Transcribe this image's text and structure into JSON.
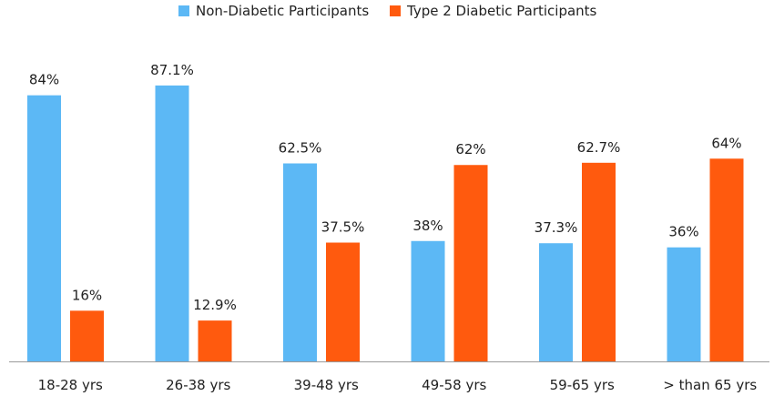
{
  "chart_data": {
    "type": "bar",
    "title": "",
    "xlabel": "",
    "ylabel": "",
    "ylim": [
      0,
      100
    ],
    "grid": false,
    "legend_position": "top",
    "categories": [
      "18-28 yrs",
      "26-38 yrs",
      "39-48 yrs",
      "49-58 yrs",
      "59-65 yrs",
      "> than 65 yrs"
    ],
    "series": [
      {
        "name": "Non-Diabetic Participants",
        "color": "#5cb8f5",
        "values": [
          84,
          87.1,
          62.5,
          38,
          37.3,
          36
        ],
        "labels": [
          "84%",
          "87.1%",
          "62.5%",
          "38%",
          "37.3%",
          "36%"
        ]
      },
      {
        "name": "Type 2 Diabetic Participants",
        "color": "#ff5a0e",
        "values": [
          16,
          12.9,
          37.5,
          62,
          62.7,
          64
        ],
        "labels": [
          "16%",
          "12.9%",
          "37.5%",
          "62%",
          "62.7%",
          "64%"
        ]
      }
    ]
  },
  "colors": {
    "axis": "#999999"
  }
}
